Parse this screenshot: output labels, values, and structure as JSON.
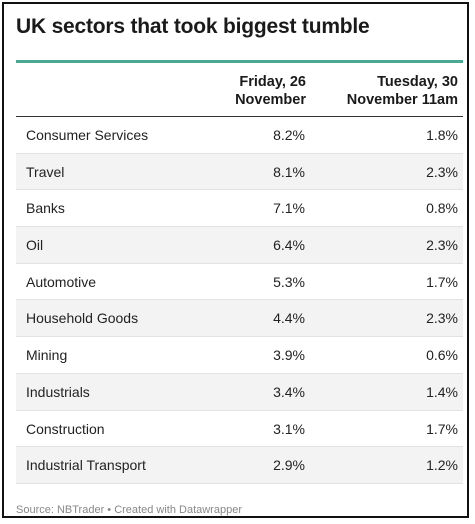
{
  "title": "UK sectors that took biggest tumble",
  "table": {
    "columns": [
      "",
      "Friday, 26 November",
      "Tuesday, 30 November 11am"
    ]
  },
  "chart_data": {
    "type": "table",
    "title": "UK sectors that took biggest tumble",
    "columns": [
      "Friday, 26 November",
      "Tuesday, 30 November 11am"
    ],
    "rows": [
      {
        "sector": "Consumer Services",
        "friday": "8.2%",
        "tuesday": "1.8%"
      },
      {
        "sector": "Travel",
        "friday": "8.1%",
        "tuesday": "2.3%"
      },
      {
        "sector": "Banks",
        "friday": "7.1%",
        "tuesday": "0.8%"
      },
      {
        "sector": "Oil",
        "friday": "6.4%",
        "tuesday": "2.3%"
      },
      {
        "sector": "Automotive",
        "friday": "5.3%",
        "tuesday": "1.7%"
      },
      {
        "sector": "Household Goods",
        "friday": "4.4%",
        "tuesday": "2.3%"
      },
      {
        "sector": "Mining",
        "friday": "3.9%",
        "tuesday": "0.6%"
      },
      {
        "sector": "Industrials",
        "friday": "3.4%",
        "tuesday": "1.4%"
      },
      {
        "sector": "Construction",
        "friday": "3.1%",
        "tuesday": "1.7%"
      },
      {
        "sector": "Industrial Transport",
        "friday": "2.9%",
        "tuesday": "1.2%"
      }
    ]
  },
  "footer": "Source: NBTrader • Created with Datawrapper",
  "colors": {
    "accent": "#4aa890",
    "shade": "#f3f3f3"
  }
}
